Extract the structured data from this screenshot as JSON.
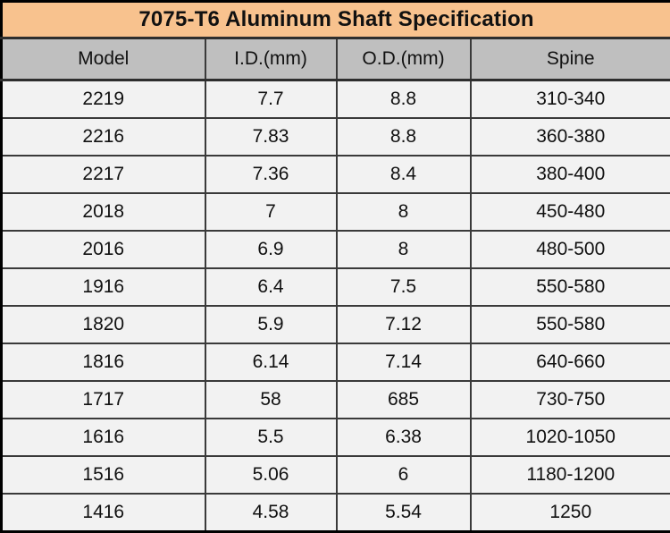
{
  "colors": {
    "title_bg": "#f8c28e",
    "header_bg": "#bfbfbf",
    "row_bg": "#f2f2f2",
    "grid_border": "#3a3a3a",
    "outer_border": "#000000",
    "text": "#111111"
  },
  "chart_data": {
    "type": "table",
    "title": "7075-T6 Aluminum Shaft Specification",
    "columns": [
      "Model",
      "I.D.(mm)",
      "O.D.(mm)",
      "Spine"
    ],
    "rows": [
      [
        "2219",
        "7.7",
        "8.8",
        "310-340"
      ],
      [
        "2216",
        "7.83",
        "8.8",
        "360-380"
      ],
      [
        "2217",
        "7.36",
        "8.4",
        "380-400"
      ],
      [
        "2018",
        "7",
        "8",
        "450-480"
      ],
      [
        "2016",
        "6.9",
        "8",
        "480-500"
      ],
      [
        "1916",
        "6.4",
        "7.5",
        "550-580"
      ],
      [
        "1820",
        "5.9",
        "7.12",
        "550-580"
      ],
      [
        "1816",
        "6.14",
        "7.14",
        "640-660"
      ],
      [
        "1717",
        "58",
        "685",
        "730-750"
      ],
      [
        "1616",
        "5.5",
        "6.38",
        "1020-1050"
      ],
      [
        "1516",
        "5.06",
        "6",
        "1180-1200"
      ],
      [
        "1416",
        "4.58",
        "5.54",
        "1250"
      ]
    ]
  }
}
